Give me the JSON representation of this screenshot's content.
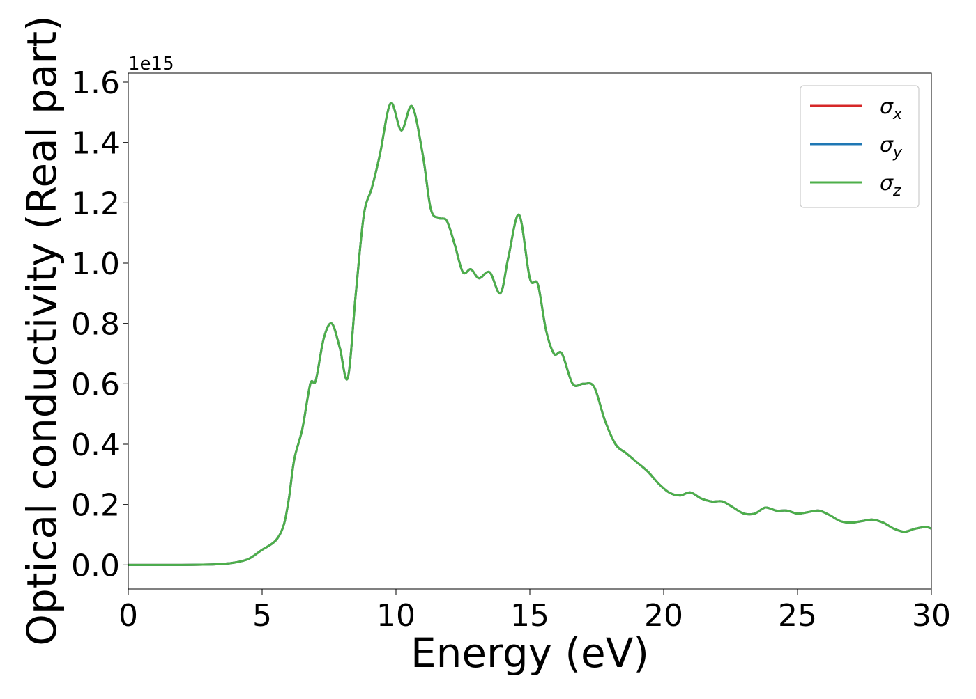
{
  "chart_data": {
    "type": "line",
    "title": "",
    "xlabel": "Energy (eV)",
    "ylabel": "Optical conductivity (Real part)",
    "y_offset_text": "1e15",
    "xlim": [
      0,
      30
    ],
    "ylim": [
      -0.08,
      1.63
    ],
    "xticks": [
      "0",
      "5",
      "10",
      "15",
      "20",
      "25",
      "30"
    ],
    "yticks": [
      "0.0",
      "0.2",
      "0.4",
      "0.6",
      "0.8",
      "1.0",
      "1.2",
      "1.4",
      "1.6"
    ],
    "grid": false,
    "legend_position": "top-right",
    "x": [
      0,
      1,
      2,
      3,
      3.5,
      4,
      4.5,
      5,
      5.5,
      5.8,
      6,
      6.2,
      6.5,
      6.8,
      7.0,
      7.3,
      7.6,
      7.9,
      8.2,
      8.5,
      8.8,
      9.1,
      9.4,
      9.8,
      10.2,
      10.6,
      11.0,
      11.3,
      11.6,
      11.9,
      12.2,
      12.5,
      12.8,
      13.1,
      13.5,
      13.9,
      14.2,
      14.6,
      15.0,
      15.3,
      15.6,
      15.9,
      16.2,
      16.6,
      17.0,
      17.4,
      17.8,
      18.2,
      18.6,
      19.0,
      19.4,
      19.8,
      20.2,
      20.6,
      21.0,
      21.4,
      21.8,
      22.2,
      22.6,
      23.0,
      23.4,
      23.8,
      24.2,
      24.6,
      25.0,
      25.4,
      25.8,
      26.2,
      26.6,
      27.0,
      27.4,
      27.8,
      28.2,
      28.6,
      29.0,
      29.4,
      29.8,
      30
    ],
    "series": [
      {
        "name": "σ_x",
        "color": "#d62728",
        "values": [
          0,
          0,
          0,
          0.001,
          0.003,
          0.008,
          0.02,
          0.05,
          0.08,
          0.13,
          0.22,
          0.35,
          0.45,
          0.6,
          0.61,
          0.75,
          0.8,
          0.72,
          0.62,
          0.9,
          1.16,
          1.25,
          1.36,
          1.53,
          1.44,
          1.52,
          1.36,
          1.18,
          1.15,
          1.14,
          1.06,
          0.97,
          0.98,
          0.95,
          0.97,
          0.9,
          1.02,
          1.16,
          0.95,
          0.93,
          0.78,
          0.7,
          0.7,
          0.6,
          0.6,
          0.59,
          0.48,
          0.4,
          0.37,
          0.34,
          0.31,
          0.27,
          0.24,
          0.23,
          0.24,
          0.22,
          0.21,
          0.21,
          0.19,
          0.17,
          0.17,
          0.19,
          0.18,
          0.18,
          0.17,
          0.175,
          0.18,
          0.165,
          0.145,
          0.14,
          0.145,
          0.15,
          0.14,
          0.12,
          0.11,
          0.12,
          0.125,
          0.12
        ]
      },
      {
        "name": "σ_y",
        "color": "#1f77b4",
        "values": [
          0,
          0,
          0,
          0.001,
          0.003,
          0.008,
          0.02,
          0.05,
          0.08,
          0.13,
          0.22,
          0.35,
          0.45,
          0.6,
          0.61,
          0.75,
          0.8,
          0.72,
          0.62,
          0.9,
          1.16,
          1.25,
          1.36,
          1.53,
          1.44,
          1.52,
          1.36,
          1.18,
          1.15,
          1.14,
          1.06,
          0.97,
          0.98,
          0.95,
          0.97,
          0.9,
          1.02,
          1.16,
          0.95,
          0.93,
          0.78,
          0.7,
          0.7,
          0.6,
          0.6,
          0.59,
          0.48,
          0.4,
          0.37,
          0.34,
          0.31,
          0.27,
          0.24,
          0.23,
          0.24,
          0.22,
          0.21,
          0.21,
          0.19,
          0.17,
          0.17,
          0.19,
          0.18,
          0.18,
          0.17,
          0.175,
          0.18,
          0.165,
          0.145,
          0.14,
          0.145,
          0.15,
          0.14,
          0.12,
          0.11,
          0.12,
          0.125,
          0.12
        ]
      },
      {
        "name": "σ_z",
        "color": "#4daf4a",
        "values": [
          0,
          0,
          0,
          0.001,
          0.003,
          0.008,
          0.02,
          0.05,
          0.08,
          0.13,
          0.22,
          0.35,
          0.45,
          0.6,
          0.61,
          0.75,
          0.8,
          0.72,
          0.62,
          0.9,
          1.16,
          1.25,
          1.36,
          1.53,
          1.44,
          1.52,
          1.36,
          1.18,
          1.15,
          1.14,
          1.06,
          0.97,
          0.98,
          0.95,
          0.97,
          0.9,
          1.02,
          1.16,
          0.95,
          0.93,
          0.78,
          0.7,
          0.7,
          0.6,
          0.6,
          0.59,
          0.48,
          0.4,
          0.37,
          0.34,
          0.31,
          0.27,
          0.24,
          0.23,
          0.24,
          0.22,
          0.21,
          0.21,
          0.19,
          0.17,
          0.17,
          0.19,
          0.18,
          0.18,
          0.17,
          0.175,
          0.18,
          0.165,
          0.145,
          0.14,
          0.145,
          0.15,
          0.14,
          0.12,
          0.11,
          0.12,
          0.125,
          0.12
        ]
      }
    ]
  }
}
